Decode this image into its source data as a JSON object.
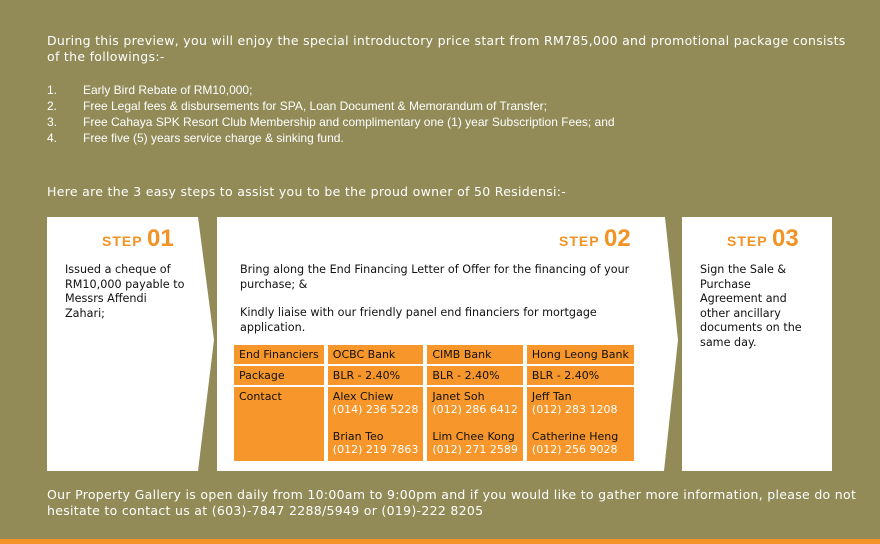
{
  "intro": "During this preview, you will enjoy the special introductory price start from RM785,000 and promotional package consists of the followings:-",
  "benefits": [
    {
      "n": "1.",
      "t": "Early Bird Rebate of RM10,000;"
    },
    {
      "n": "2.",
      "t": "Free Legal fees & disbursements for SPA, Loan Document & Memorandum of Transfer;"
    },
    {
      "n": "3.",
      "t": "Free Cahaya SPK Resort Club Membership and complimentary one (1) year Subscription Fees; and"
    },
    {
      "n": "4.",
      "t": "Free five (5) years service charge & sinking fund."
    }
  ],
  "steps_intro": "Here are the 3 easy steps to assist you to be the proud owner of 50 Residensi:-",
  "steps": [
    {
      "word": "STEP",
      "num": "01",
      "text": "Issued a cheque of RM10,000 payable to Messrs Affendi Zahari;"
    },
    {
      "word": "STEP",
      "num": "02",
      "text1": "Bring along the End Financing Letter of Offer for the financing of your purchase; &",
      "text2": "Kindly liaise with our friendly panel end financiers for mortgage application."
    },
    {
      "word": "STEP",
      "num": "03",
      "text": "Sign the Sale & Purchase Agreement and other ancillary documents on the same day."
    }
  ],
  "table": {
    "row_labels": [
      "End Financiers",
      "Package",
      "Contact"
    ],
    "banks": [
      {
        "name": "OCBC Bank",
        "package": "BLR - 2.40%",
        "contacts": [
          {
            "name": "Alex Chiew",
            "phone": "(014) 236 5228"
          },
          {
            "name": "Brian Teo",
            "phone": "(012) 219 7863"
          }
        ]
      },
      {
        "name": "CIMB Bank",
        "package": "BLR - 2.40%",
        "contacts": [
          {
            "name": "Janet Soh",
            "phone": "(012) 286 6412"
          },
          {
            "name": "Lim Chee Kong",
            "phone": "(012) 271 2589"
          }
        ]
      },
      {
        "name": "Hong Leong Bank",
        "package": "BLR - 2.40%",
        "contacts": [
          {
            "name": "Jeff Tan",
            "phone": "(012) 283 1208"
          },
          {
            "name": "Catherine Heng",
            "phone": "(012) 256 9028"
          }
        ]
      }
    ]
  },
  "footer": "Our Property Gallery is open daily from 10:00am to 9:00pm and if you would like to gather more information, please do not hesitate to contact us at (603)-7847 2288/5949 or (019)-222 8205",
  "colors": {
    "background": "#928b57",
    "accent": "#f39325",
    "cell": "#f7962a"
  }
}
